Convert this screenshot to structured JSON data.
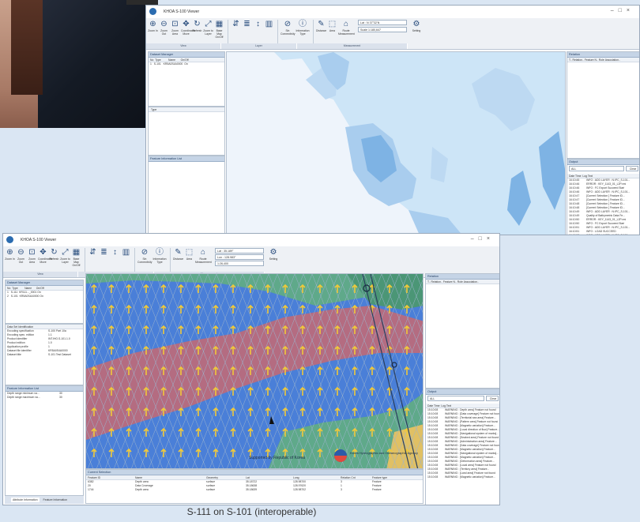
{
  "caption": "S-111 on S-101 (interoperable)",
  "back_window": {
    "title": "KHOA S-100 Viewer",
    "ribbon_buttons": [
      "Zoom In",
      "Zoom Out",
      "Zoom Area",
      "Coordinates Move",
      "Refresh",
      "Zoom to Layer",
      "Base Map On/Off",
      "Sin Connectivity",
      "Information Type",
      "Distance",
      "Area",
      "Route Measurement",
      "Setting"
    ],
    "ribbon_icons": [
      "zoom-in-icon",
      "zoom-out-icon",
      "zoom-area-icon",
      "move-icon",
      "refresh-icon",
      "fit-icon",
      "basemap-icon"
    ],
    "ribbon_groups": [
      "View",
      "Layer",
      "Measurement"
    ],
    "scale_label": "Scale",
    "scale_value": "1:180,647",
    "lat_value": "Lat : N 37°32'N",
    "dataset_header": "Dataset Manager",
    "dataset_cols": [
      "No",
      "Type",
      "Name",
      "On/Off"
    ],
    "dataset_rows": [
      [
        "1",
        "S-101",
        "KR5A0S4A0000",
        "On"
      ]
    ],
    "info_header": "Feature Information List",
    "relation_header": "Relation",
    "relation_cols": [
      "T..",
      "Relation..",
      "Feature N..",
      "Role",
      "Association.."
    ],
    "log_header": "Output",
    "log_filter": "ALL",
    "log_button": "Clear",
    "log_cols": [
      "Date Time",
      "Log Text"
    ],
    "log_rows": [
      [
        "16:10:45",
        "INFO : ADD LAYER : N:\\PC_S-101..."
      ],
      [
        "16:10:46",
        "ERROR : KEY_1143_01_L2P.xml"
      ],
      [
        "16:10:46",
        "INFO : FC Export Succeed Start"
      ],
      [
        "16:10:46",
        "INFO : ADD LAYER : N:\\PC_S-101..."
      ],
      [
        "16:10:47",
        "[Current Selection ] Feature ID..."
      ],
      [
        "16:10:47",
        "[Current Selection ] Feature ID..."
      ],
      [
        "16:10:48",
        "[Current Selection ] Feature ID..."
      ],
      [
        "16:10:48",
        "[Current Selection ] Feature ID..."
      ],
      [
        "16:10:49",
        "INFO : ADD LAYER : N:\\PC_S-101..."
      ],
      [
        "16:10:49",
        "Quality of Bathymetric Data Fe..."
      ],
      [
        "16:10:50",
        "ERROR : KEY_1143_01_L2P.xml"
      ],
      [
        "16:10:50",
        "INFO : FC Export Succeed Start"
      ],
      [
        "16:10:51",
        "INFO : ADD LAYER : N:\\PC_S-101..."
      ],
      [
        "16:10:51",
        "INFO : LOAD SUCCEED"
      ],
      [
        "16:10:52",
        "INFO : ADD LAYER : N:\\PC_S-101..."
      ],
      [
        "16:10:52",
        "\"Loaded\" \"Loaded\" start"
      ]
    ]
  },
  "front_window": {
    "title": "KHOA S-100 Viewer",
    "ribbon_buttons": [
      "Zoom In",
      "Zoom Out",
      "Zoom Area",
      "Coordinates Move",
      "Refresh",
      "Zoom to Layer",
      "Base Map On/Off",
      "Sin Connectivity",
      "Information Type",
      "Distance",
      "Area",
      "Route Measurement",
      "Setting"
    ],
    "ribbon_groups": [
      "View",
      "Layer",
      "Measurement"
    ],
    "lat_value": "Lat : 35.189°",
    "lon_value": "Lon : 128.983°",
    "scale_value": "1:26,400",
    "dataset_header": "Dataset Manager",
    "dataset_cols": [
      "No",
      "Type",
      "Name",
      "On/Off"
    ],
    "dataset_rows": [
      [
        "1",
        "S-111",
        "KR111..._0001",
        "On"
      ],
      [
        "2",
        "S-101",
        "KR5A0S4A0000",
        "On"
      ]
    ],
    "props_header": "Data Set Identification",
    "props_rows": [
      [
        "Encoding specification",
        "S-100 Part 10a"
      ],
      [
        "Encoding spec. edition",
        "1.1"
      ],
      [
        "Product identifier",
        "INT.IHO.S-101.1.0"
      ],
      [
        "Product edition",
        "1.0"
      ],
      [
        "Application profile",
        "1"
      ],
      [
        "Dataset file identifier",
        "KR5A0S4A0000"
      ],
      [
        "Dataset title",
        "S-101 Test Dataset"
      ]
    ],
    "info_header": "Feature Information List",
    "info_rows": [
      [
        "Depth range minimum va...",
        "30"
      ],
      [
        "Depth range maximum va...",
        "30"
      ]
    ],
    "bottom_tabs": [
      "Attribute Information",
      "Feature Information"
    ],
    "watermark_line1": "Supported by Republic of Korea",
    "watermark_line2": "Korea Hydrographic and Oceanographic Agency",
    "relation_header": "Relation",
    "relation_cols": [
      "T..",
      "Relation..",
      "Feature N..",
      "Role",
      "Association.."
    ],
    "output_header": "Output",
    "output_filter": "ALL",
    "output_button": "Clear",
    "output_cols": [
      "Date Time",
      "Log Text"
    ],
    "output_rows": [
      [
        "15:10:08",
        "WARNING : Depth area] Feature not found"
      ],
      [
        "15:10:08",
        "WARNING : [Data coverage] Feature not found"
      ],
      [
        "15:10:08",
        "WARNING : [Territorial sea area] Feature..."
      ],
      [
        "15:10:08",
        "WARNING : [Pattern area] Feature not found"
      ],
      [
        "15:10:08",
        "WARNING : [Magnetic variation] Feature..."
      ],
      [
        "15:10:08",
        "WARNING : [Local direction of flow] Feature..."
      ],
      [
        "15:10:08",
        "WARNING : [Navigational system of marks]..."
      ],
      [
        "15:10:08",
        "WARNING : [Seabed area] Feature not found"
      ],
      [
        "15:10:08",
        "WARNING : [Administration area] Feature..."
      ],
      [
        "15:10:08",
        "WARNING : [Data coverage] Feature not found"
      ],
      [
        "15:10:08",
        "WARNING : [Magnetic variation] Feature..."
      ],
      [
        "15:10:08",
        "WARNING : [Navigational system of marks]..."
      ],
      [
        "15:10:08",
        "WARNING : [Magnetic variation] Feature..."
      ],
      [
        "15:10:08",
        "WARNING : [Deformation area] Feature..."
      ],
      [
        "15:10:08",
        "WARNING : [Local area] Feature not found"
      ],
      [
        "15:10:08",
        "WARNING : [Territory area] Feature..."
      ],
      [
        "15:10:08",
        "WARNING : [Land area] Feature not found"
      ],
      [
        "15:10:08",
        "WARNING : [Magnetic variation] Feature..."
      ]
    ],
    "feature_header": "Current Selection",
    "feature_cols": [
      "Feature ID",
      "Name",
      "Geometry",
      "Lat",
      "Long",
      "Relation Cnt",
      "Feature type"
    ],
    "feature_rows": [
      [
        "6382",
        "Depth area",
        "surface",
        "35.18722",
        "128.98700",
        "3",
        "Feature"
      ],
      [
        "20",
        "Data Coverage",
        "surface",
        "35.18638",
        "128.97620",
        "1",
        "Feature"
      ],
      [
        "1744",
        "Depth area",
        "surface",
        "35.18639",
        "128.98702",
        "3",
        "Feature"
      ]
    ]
  }
}
